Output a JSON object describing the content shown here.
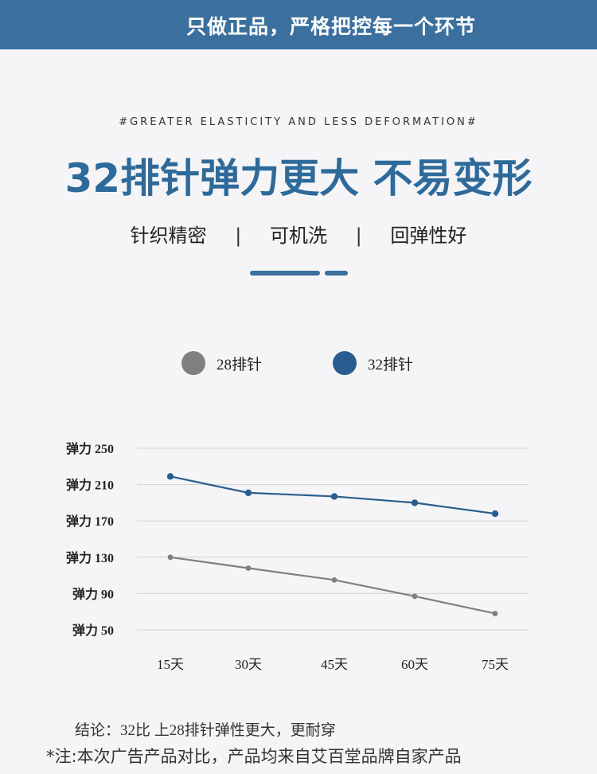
{
  "banner": {
    "text": "只做正品，严格把控每一个环节"
  },
  "header": {
    "subtitle_en": "#GREATER ELASTICITY AND LESS DEFORMATION#",
    "headline": "32排针弹力更大 不易变形",
    "features": [
      "针织精密",
      "可机洗",
      "回弹性好"
    ],
    "separator": "|"
  },
  "colors": {
    "brand": "#3b6f9d",
    "headline": "#2e6a9a",
    "series_a": "#808080",
    "series_b": "#2a5d8f"
  },
  "chart_data": {
    "type": "line",
    "categories": [
      "15天",
      "30天",
      "45天",
      "60天",
      "75天"
    ],
    "y_tick_labels": [
      "弹力 250",
      "弹力 210",
      "弹力 170",
      "弹力 130",
      "弹力 90",
      "弹力 50"
    ],
    "y_ticks": [
      250,
      210,
      170,
      130,
      90,
      50
    ],
    "ylim": [
      50,
      250
    ],
    "series": [
      {
        "name": "28排针",
        "color": "#808080",
        "values": [
          130,
          118,
          105,
          87,
          68
        ]
      },
      {
        "name": "32排针",
        "color": "#2a5d8f",
        "values": [
          219,
          201,
          197,
          190,
          178
        ]
      }
    ],
    "grid": true,
    "legend_position": "top"
  },
  "footer": {
    "conclusion": "结论：32比 上28排针弹性更大，更耐穿",
    "disclaimer": "*注:本次广告产品对比，产品均来自艾百堂品牌自家产品"
  }
}
